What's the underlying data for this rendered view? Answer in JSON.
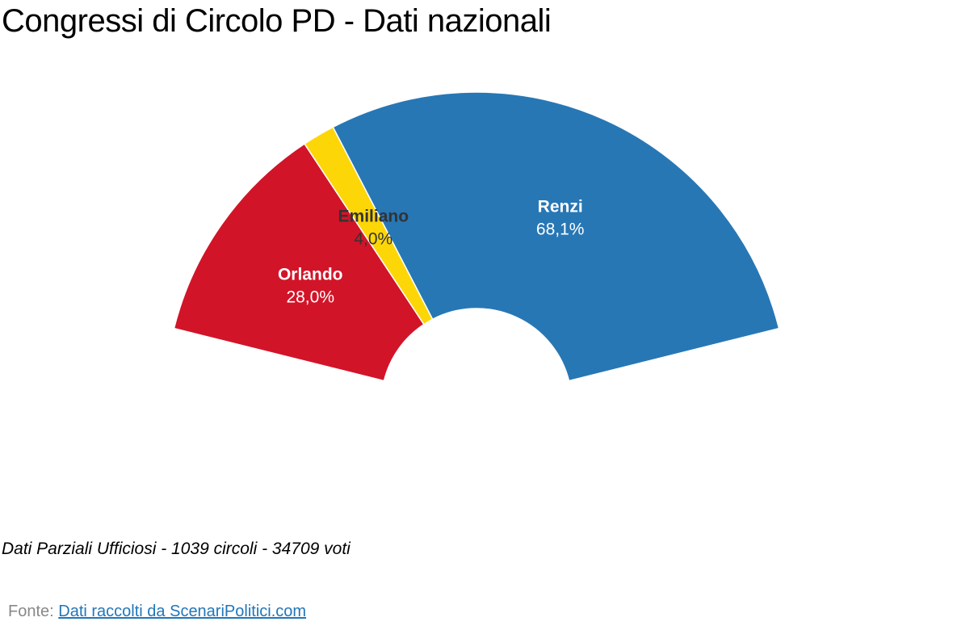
{
  "title": "Congressi di Circolo PD - Dati nazionali",
  "note": "Dati Parziali Ufficiosi - 1039 circoli - 34709 voti",
  "source": {
    "prefix": "Fonte:",
    "link_text": "Dati raccolti da ScenariPolitici.com"
  },
  "chart_data": {
    "type": "pie",
    "variant": "semi-donut",
    "slices": [
      {
        "name": "Orlando",
        "value": 28.0,
        "label": "28,0%",
        "color": "#d21428",
        "label_color": "#ffffff"
      },
      {
        "name": "Emiliano",
        "value": 4.0,
        "label": "4,0%",
        "color": "#fdd608",
        "label_color": "#333333"
      },
      {
        "name": "Renzi",
        "value": 68.1,
        "label": "68,1%",
        "color": "#2777b5",
        "label_color": "#ffffff"
      }
    ]
  }
}
